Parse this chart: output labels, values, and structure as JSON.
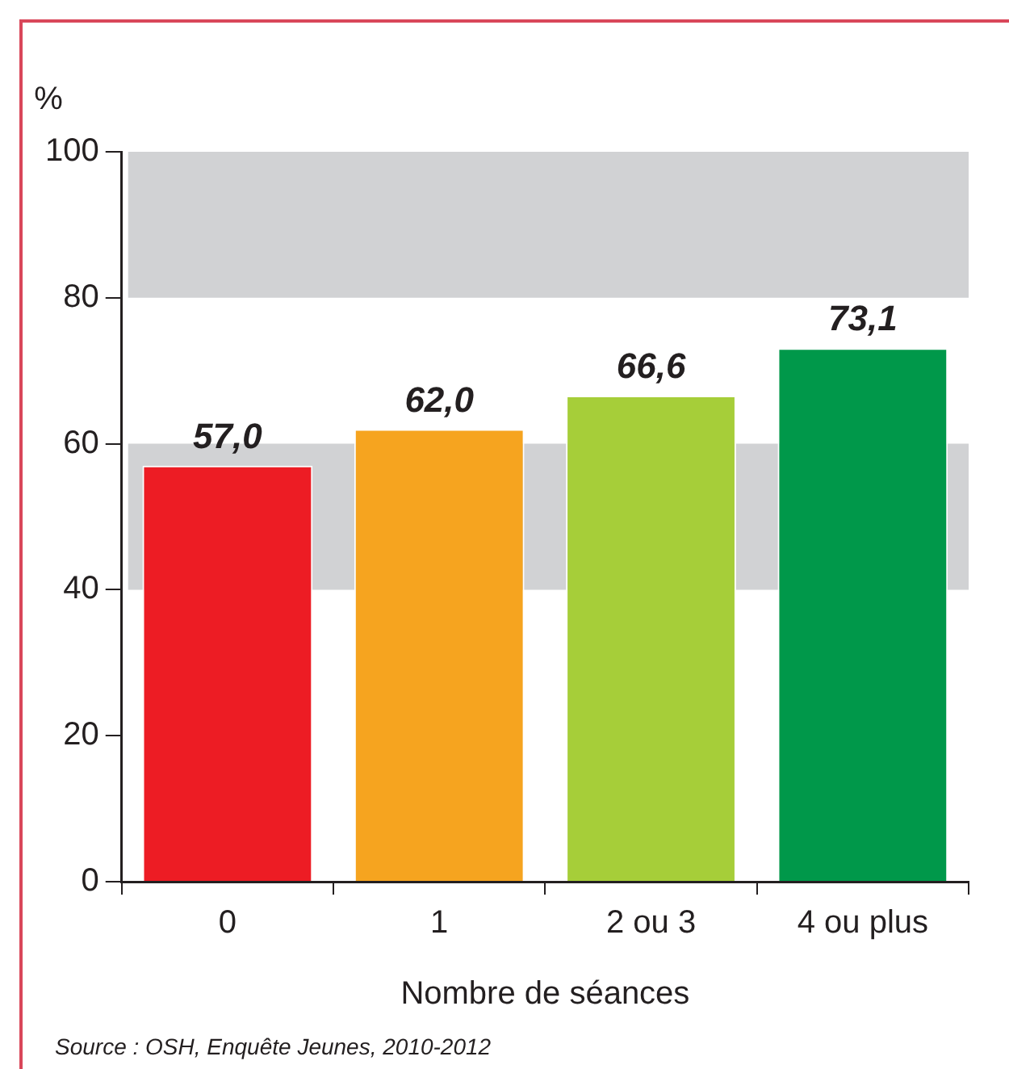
{
  "chart_data": {
    "type": "bar",
    "xlabel": "Nombre de séances",
    "ylabel": "%",
    "categories": [
      "0",
      "1",
      "2 ou 3",
      "4 ou plus"
    ],
    "values": [
      57.0,
      62.0,
      66.6,
      73.1
    ],
    "colors": [
      "#ed1c24",
      "#f6a41f",
      "#a6ce39",
      "#00984a"
    ],
    "ylim": [
      0,
      100
    ],
    "yticks": [
      0,
      20,
      40,
      60,
      80,
      100
    ],
    "bands": [
      {
        "axis": "y",
        "from": 40,
        "to": 60,
        "color": "#d1d2d4"
      },
      {
        "axis": "y",
        "from": 80,
        "to": 100,
        "color": "#d1d2d4"
      }
    ],
    "value_labels": [
      "57,0",
      "62,0",
      "66,6",
      "73,1"
    ],
    "annotations": [
      "Source : OSH, Enquête Jeunes, 2010-2012"
    ]
  }
}
